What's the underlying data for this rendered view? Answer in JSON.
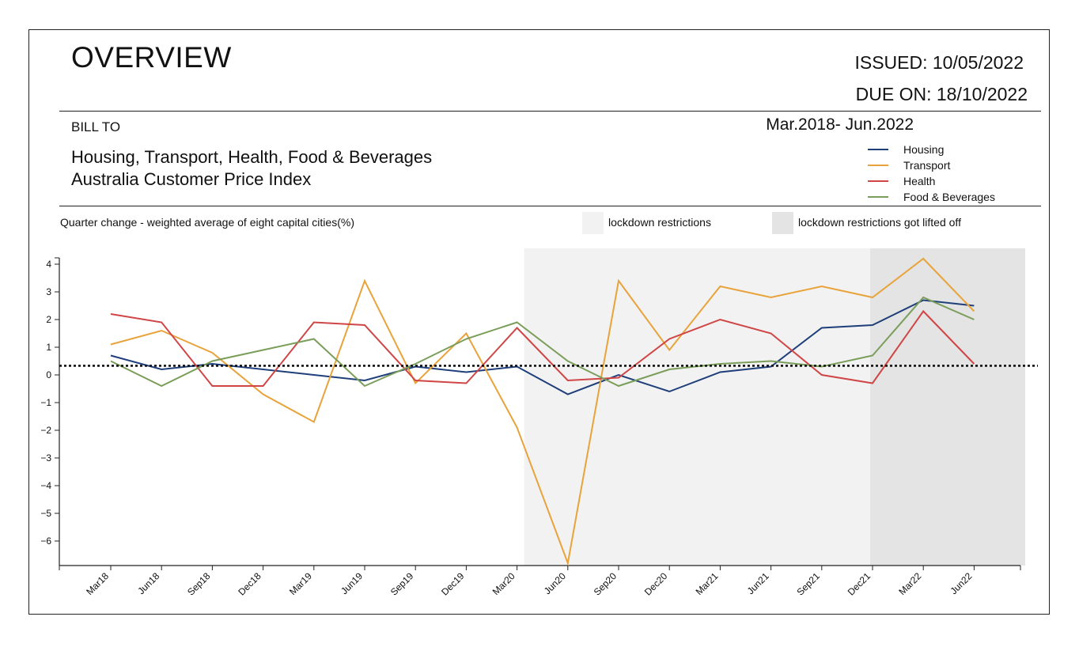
{
  "header": {
    "title": "OVERVIEW",
    "issued": "ISSUED: 10/05/2022",
    "due_on": "DUE ON: 18/10/2022",
    "bill_to": "BILL TO",
    "date_range": "Mar.2018- Jun.2022",
    "subject_line1": "Housing, Transport, Health, Food & Beverages",
    "subject_line2": "Australia Customer Price Index"
  },
  "chart_data": {
    "type": "line",
    "title": "",
    "subtitle": "Quarter change - weighted average of eight capital cities(%)",
    "xlabel": "",
    "ylabel": "",
    "categories": [
      "Mar18",
      "Jun18",
      "Sep18",
      "Dec18",
      "Mar19",
      "Jun19",
      "Sep19",
      "Dec19",
      "Mar20",
      "Jun20",
      "Sep20",
      "Dec20",
      "Mar21",
      "Jun21",
      "Sep21",
      "Dec21",
      "Mar22",
      "Jun22"
    ],
    "ylim": [
      -6.8,
      4.2
    ],
    "yticks": [
      "4",
      "3",
      "2",
      "1",
      "0",
      "−1",
      "−2",
      "−3",
      "−4",
      "−5",
      "−6"
    ],
    "ytick_values": [
      4,
      3,
      2,
      1,
      0,
      -1,
      -2,
      -3,
      -4,
      -5,
      -6
    ],
    "reference_line": 0.33,
    "grid": false,
    "legend_position": "top-right",
    "series": [
      {
        "name": "Housing",
        "color": "#1f3f7a",
        "values": [
          0.7,
          0.2,
          0.4,
          0.2,
          0.0,
          -0.2,
          0.3,
          0.1,
          0.3,
          -0.7,
          0.0,
          -0.6,
          0.1,
          0.3,
          1.7,
          1.8,
          2.7,
          2.5
        ]
      },
      {
        "name": "Transport",
        "color": "#e8a33a",
        "values": [
          1.1,
          1.6,
          0.8,
          -0.7,
          -1.7,
          3.4,
          -0.3,
          1.5,
          -1.9,
          -6.8,
          3.4,
          0.9,
          3.2,
          2.8,
          3.2,
          2.8,
          4.2,
          2.3
        ]
      },
      {
        "name": "Health",
        "color": "#d04545",
        "values": [
          2.2,
          1.9,
          -0.4,
          -0.4,
          1.9,
          1.8,
          -0.2,
          -0.3,
          1.7,
          -0.2,
          -0.1,
          1.3,
          2.0,
          1.5,
          0.0,
          -0.3,
          2.3,
          0.4
        ]
      },
      {
        "name": "Food & Beverages",
        "color": "#7a9e5a",
        "values": [
          0.5,
          -0.4,
          0.5,
          0.9,
          1.3,
          -0.4,
          0.4,
          1.3,
          1.9,
          0.5,
          -0.4,
          0.2,
          0.4,
          0.5,
          0.3,
          0.7,
          2.8,
          2.0
        ]
      }
    ],
    "shaded_regions": [
      {
        "label": "lockdown restrictions",
        "from": "Mar20",
        "to": "Dec21",
        "color": "#f2f2f2"
      },
      {
        "label": "lockdown restrictions got lifted off",
        "from": "Dec21",
        "to": "end",
        "color": "#e4e4e4"
      }
    ]
  }
}
